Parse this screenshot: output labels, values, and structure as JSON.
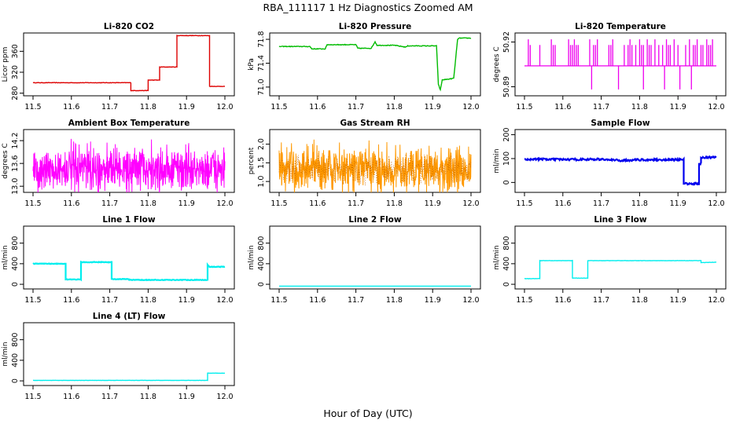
{
  "figure": {
    "title": "RBA_111117  1 Hz Diagnostics Zoomed AM",
    "xlabel": "Hour of Day (UTC)"
  },
  "chart_data": [
    {
      "type": "line",
      "title": "Li-820 CO2",
      "ylabel": "Licor ppm",
      "xlim": [
        11.5,
        12.0
      ],
      "ylim": [
        278,
        392
      ],
      "xticks": [
        "11.5",
        "11.6",
        "11.7",
        "11.8",
        "11.9",
        "12.0"
      ],
      "yticks": [
        {
          "v": 280,
          "label": "280"
        },
        {
          "v": 320,
          "label": "320"
        },
        {
          "v": 360,
          "label": "360"
        }
      ],
      "color": "#dd0000",
      "noise": 0.4,
      "style": "step",
      "series": [
        {
          "name": "CO2",
          "x": [
            11.5,
            11.755,
            11.755,
            11.8,
            11.8,
            11.83,
            11.83,
            11.875,
            11.875,
            11.96,
            11.96,
            11.97,
            12.0
          ],
          "y": [
            300,
            300,
            285,
            285,
            305,
            305,
            330,
            330,
            390,
            390,
            293,
            293,
            293
          ]
        }
      ]
    },
    {
      "type": "line",
      "title": "Li-820 Pressure",
      "ylabel": "kPa",
      "xlim": [
        11.5,
        12.0
      ],
      "ylim": [
        70.88,
        71.88
      ],
      "xticks": [
        "11.5",
        "11.6",
        "11.7",
        "11.8",
        "11.9",
        "12.0"
      ],
      "yticks": [
        {
          "v": 71.0,
          "label": "71.0"
        },
        {
          "v": 71.4,
          "label": "71.4"
        },
        {
          "v": 71.8,
          "label": "71.8"
        }
      ],
      "color": "#00bb00",
      "noise": 0.006,
      "style": "step",
      "series": [
        {
          "name": "Pressure",
          "x": [
            11.5,
            11.58,
            11.585,
            11.62,
            11.625,
            11.7,
            11.705,
            11.74,
            11.75,
            11.755,
            11.8,
            11.83,
            11.835,
            11.91,
            11.915,
            11.92,
            11.925,
            11.95,
            11.955,
            11.965,
            11.97,
            12.0
          ],
          "y": [
            71.68,
            71.68,
            71.64,
            71.64,
            71.71,
            71.71,
            71.65,
            71.65,
            71.76,
            71.7,
            71.7,
            71.67,
            71.69,
            71.69,
            71.05,
            70.95,
            71.12,
            71.14,
            71.15,
            71.8,
            71.82,
            71.82
          ]
        }
      ]
    },
    {
      "type": "line",
      "title": "Li-820 Temperature",
      "ylabel": "degrees C",
      "xlim": [
        11.5,
        12.0
      ],
      "ylim": [
        50.885,
        50.925
      ],
      "xticks": [
        "11.5",
        "11.6",
        "11.7",
        "11.8",
        "11.9",
        "12.0"
      ],
      "yticks": [
        {
          "v": 50.89,
          "label": "50.89"
        },
        {
          "v": 50.92,
          "label": "50.92"
        }
      ],
      "color": "#ee00ee",
      "style": "spike",
      "base": 50.904,
      "spikes_up": [
        11.51,
        11.515,
        11.54,
        11.57,
        11.575,
        11.58,
        11.615,
        11.62,
        11.625,
        11.63,
        11.635,
        11.64,
        11.67,
        11.68,
        11.685,
        11.69,
        11.72,
        11.725,
        11.73,
        11.76,
        11.77,
        11.775,
        11.78,
        11.79,
        11.8,
        11.805,
        11.81,
        11.82,
        11.825,
        11.83,
        11.84,
        11.85,
        11.86,
        11.87,
        11.875,
        11.88,
        11.89,
        11.9,
        11.92,
        11.93,
        11.94,
        11.945,
        11.95,
        11.96,
        11.965,
        11.975,
        11.98,
        11.985,
        11.99
      ],
      "spikes_down": [
        11.675,
        11.745,
        11.81,
        11.865,
        11.905,
        11.935
      ],
      "series": [
        {
          "name": "Temperature",
          "x": [
            11.5,
            12.0
          ],
          "y": [
            50.904,
            50.904
          ]
        }
      ]
    },
    {
      "type": "line",
      "title": "Ambient Box Temperature",
      "ylabel": "degrees C",
      "xlim": [
        11.5,
        12.0
      ],
      "ylim": [
        12.88,
        14.45
      ],
      "xticks": [
        "11.5",
        "11.6",
        "11.7",
        "11.8",
        "11.9",
        "12.0"
      ],
      "yticks": [
        {
          "v": 13.0,
          "label": "13.0"
        },
        {
          "v": 13.6,
          "label": "13.6"
        },
        {
          "v": 14.2,
          "label": "14.2"
        }
      ],
      "color": "#ff00ff",
      "style": "noisy",
      "noise": 0.35,
      "series": [
        {
          "name": "Box Temp",
          "x": [
            11.5,
            12.0
          ],
          "y": [
            13.45,
            13.45
          ]
        }
      ]
    },
    {
      "type": "line",
      "title": "Gas Stream RH",
      "ylabel": "percent",
      "xlim": [
        11.5,
        12.0
      ],
      "ylim": [
        0.75,
        2.35
      ],
      "xticks": [
        "11.5",
        "11.6",
        "11.7",
        "11.8",
        "11.9",
        "12.0"
      ],
      "yticks": [
        {
          "v": 1.0,
          "label": "1.0"
        },
        {
          "v": 1.5,
          "label": "1.5"
        },
        {
          "v": 2.0,
          "label": "2.0"
        }
      ],
      "color": "#ff9900",
      "style": "noisy",
      "noise": 0.38,
      "markers": true,
      "series": [
        {
          "name": "RH",
          "x": [
            11.5,
            12.0
          ],
          "y": [
            1.32,
            1.32
          ]
        }
      ]
    },
    {
      "type": "line",
      "title": "Sample Flow",
      "ylabel": "ml/min",
      "xlim": [
        11.5,
        12.0
      ],
      "ylim": [
        -35,
        215
      ],
      "xticks": [
        "11.5",
        "11.6",
        "11.7",
        "11.8",
        "11.9",
        "12.0"
      ],
      "yticks": [
        {
          "v": 0,
          "label": "0"
        },
        {
          "v": 100,
          "label": "100"
        },
        {
          "v": 200,
          "label": "200"
        }
      ],
      "color": "#0000ee",
      "noise": 4,
      "style": "step",
      "series": [
        {
          "name": "Sample Flow",
          "x": [
            11.5,
            11.6,
            11.7,
            11.75,
            11.8,
            11.9,
            11.915,
            11.915,
            11.955,
            11.955,
            11.96,
            11.96,
            12.0
          ],
          "y": [
            98,
            96,
            97,
            92,
            95,
            95,
            95,
            -5,
            -5,
            80,
            80,
            105,
            105
          ]
        }
      ]
    },
    {
      "type": "line",
      "title": "Line 1 Flow",
      "ylabel": "ml/min",
      "xlim": [
        11.5,
        12.0
      ],
      "ylim": [
        -60,
        1100
      ],
      "xticks": [
        "11.5",
        "11.6",
        "11.7",
        "11.8",
        "11.9",
        "12.0"
      ],
      "yticks": [
        {
          "v": 0,
          "label": "0"
        },
        {
          "v": 400,
          "label": "400"
        },
        {
          "v": 800,
          "label": "800"
        }
      ],
      "color": "#00eeee",
      "noise": 6,
      "style": "step",
      "series": [
        {
          "name": "Line 1",
          "x": [
            11.5,
            11.585,
            11.585,
            11.625,
            11.625,
            11.705,
            11.705,
            11.75,
            11.75,
            11.955,
            11.955,
            11.96,
            12.0
          ],
          "y": [
            400,
            400,
            95,
            95,
            430,
            430,
            100,
            100,
            85,
            85,
            380,
            340,
            340
          ]
        }
      ]
    },
    {
      "type": "line",
      "title": "Line 2 Flow",
      "ylabel": "ml/min",
      "xlim": [
        11.5,
        12.0
      ],
      "ylim": [
        -60,
        1100
      ],
      "xticks": [
        "11.5",
        "11.6",
        "11.7",
        "11.8",
        "11.9",
        "12.0"
      ],
      "yticks": [
        {
          "v": 0,
          "label": "0"
        },
        {
          "v": 400,
          "label": "400"
        },
        {
          "v": 800,
          "label": "800"
        }
      ],
      "color": "#00eeee",
      "noise": 0,
      "style": "step",
      "series": [
        {
          "name": "Line 2",
          "x": [
            11.5,
            12.0
          ],
          "y": [
            -35,
            -35
          ]
        }
      ]
    },
    {
      "type": "line",
      "title": "Line 3 Flow",
      "ylabel": "ml/min",
      "xlim": [
        11.5,
        12.0
      ],
      "ylim": [
        -60,
        1100
      ],
      "xticks": [
        "11.5",
        "11.6",
        "11.7",
        "11.8",
        "11.9",
        "12.0"
      ],
      "yticks": [
        {
          "v": 0,
          "label": "0"
        },
        {
          "v": 400,
          "label": "400"
        },
        {
          "v": 800,
          "label": "800"
        }
      ],
      "color": "#00eeee",
      "noise": 3,
      "style": "step",
      "series": [
        {
          "name": "Line 3",
          "x": [
            11.5,
            11.54,
            11.54,
            11.625,
            11.625,
            11.665,
            11.665,
            11.96,
            11.96,
            12.0
          ],
          "y": [
            110,
            110,
            460,
            460,
            120,
            120,
            460,
            460,
            420,
            430
          ]
        }
      ]
    },
    {
      "type": "line",
      "title": "Line 4 (LT) Flow",
      "ylabel": "ml/min",
      "xlim": [
        11.5,
        12.0
      ],
      "ylim": [
        -60,
        1100
      ],
      "xticks": [
        "11.5",
        "11.6",
        "11.7",
        "11.8",
        "11.9",
        "12.0"
      ],
      "yticks": [
        {
          "v": 0,
          "label": "0"
        },
        {
          "v": 400,
          "label": "400"
        },
        {
          "v": 800,
          "label": "800"
        }
      ],
      "color": "#00eeee",
      "noise": 2,
      "style": "step",
      "series": [
        {
          "name": "Line 4",
          "x": [
            11.5,
            11.955,
            11.955,
            12.0
          ],
          "y": [
            10,
            10,
            150,
            150
          ]
        }
      ]
    }
  ]
}
